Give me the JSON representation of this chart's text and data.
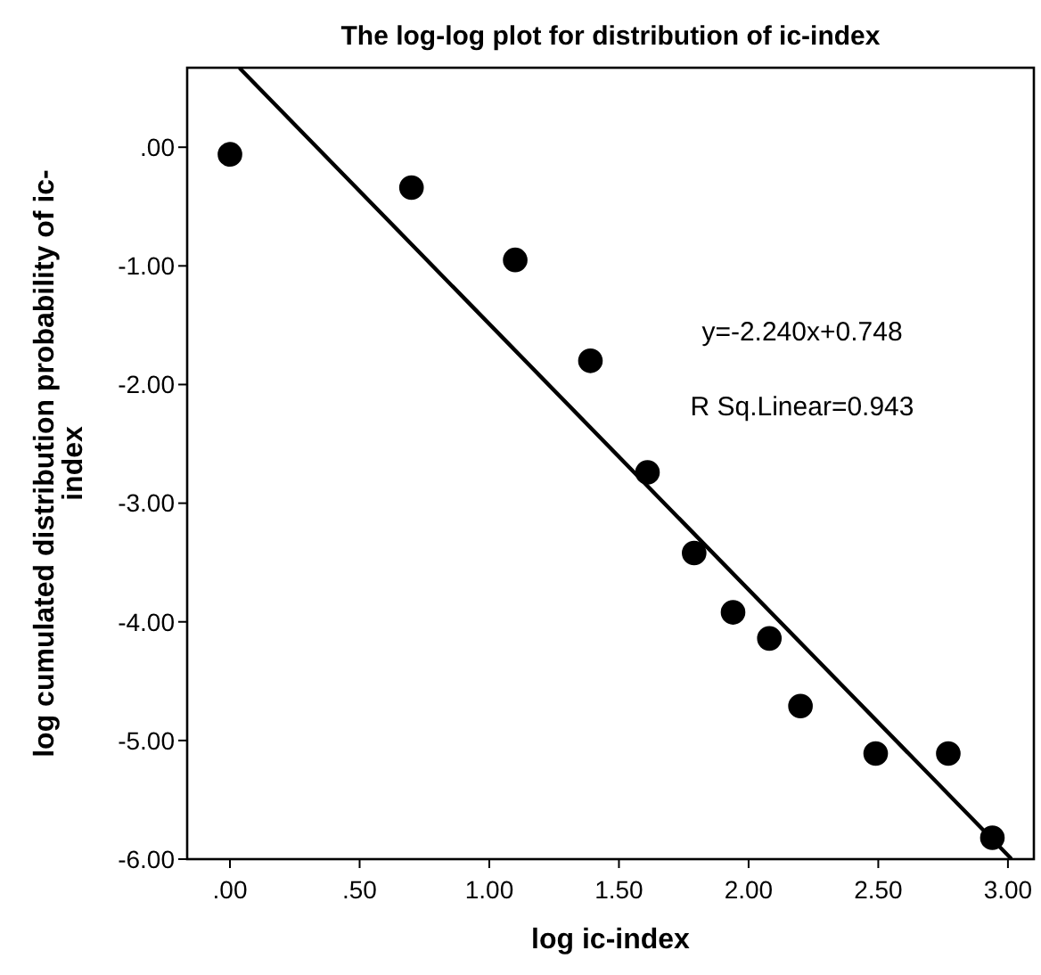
{
  "chart_data": {
    "type": "scatter",
    "title": "The log-log plot for distribution of ic-index",
    "xlabel": "log ic-index",
    "ylabel": "log cumulated distribution probability of ic-index",
    "series": [
      {
        "color": "#000000",
        "x": [
          0,
          0.7,
          1.1,
          1.39,
          1.61,
          1.79,
          1.94,
          2.08,
          2.2,
          2.49,
          2.77,
          2.94
        ],
        "values": [
          -0.06,
          -0.34,
          -0.95,
          -1.8,
          -2.74,
          -3.42,
          -3.92,
          -4.14,
          -4.71,
          -5.11,
          -5.11,
          -5.82
        ]
      },
      {
        "type": "line",
        "marker": "none",
        "color": "#000000",
        "x": [
          0.04,
          3.01
        ],
        "values": [
          0.66,
          -5.99
        ]
      }
    ],
    "annotations": [
      "y=-2.240x+0.748",
      "R Sq.Linear=0.943"
    ],
    "xlim": [
      -0.165,
      3.1
    ],
    "ylim": [
      -6,
      0.67
    ],
    "xticks": [
      {
        "value": 0,
        "label": ".00"
      },
      {
        "value": 0.5,
        "label": ".50"
      },
      {
        "value": 1,
        "label": "1.00"
      },
      {
        "value": 1.5,
        "label": "1.50"
      },
      {
        "value": 2,
        "label": "2.00"
      },
      {
        "value": 2.5,
        "label": "2.50"
      },
      {
        "value": 3,
        "label": "3.00"
      }
    ],
    "yticks": [
      {
        "value": 0,
        "label": ".00"
      },
      {
        "value": -1,
        "label": "-1.00"
      },
      {
        "value": -2,
        "label": "-2.00"
      },
      {
        "value": -3,
        "label": "-3.00"
      },
      {
        "value": -4,
        "label": "-4.00"
      },
      {
        "value": -5,
        "label": "-5.00"
      },
      {
        "value": -6,
        "label": "-6.00"
      }
    ],
    "grid": false,
    "marker": "circle",
    "line_style": "solid"
  }
}
